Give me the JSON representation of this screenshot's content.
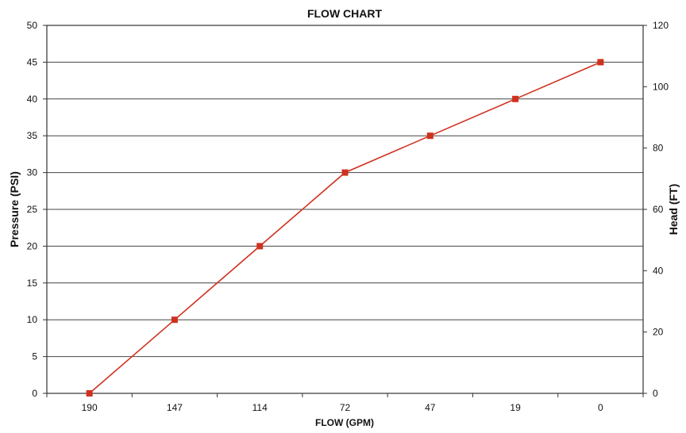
{
  "chart_data": {
    "type": "line",
    "title": "FLOW CHART",
    "xlabel": "FLOW (GPM)",
    "ylabel": "Pressure (PSI)",
    "y2label": "Head (FT)",
    "categories": [
      "190",
      "147",
      "114",
      "72",
      "47",
      "19",
      "0"
    ],
    "series": [
      {
        "values": [
          0,
          10,
          20,
          30,
          35,
          40,
          45
        ],
        "color": "#d0311f"
      }
    ],
    "ylim": [
      0,
      50
    ],
    "yticks": [
      0,
      5,
      10,
      15,
      20,
      25,
      30,
      35,
      40,
      45,
      50
    ],
    "y2lim": [
      0,
      120
    ],
    "y2ticks": [
      0,
      20,
      40,
      60,
      80,
      100,
      120
    ],
    "grid": true,
    "marker": "square"
  }
}
